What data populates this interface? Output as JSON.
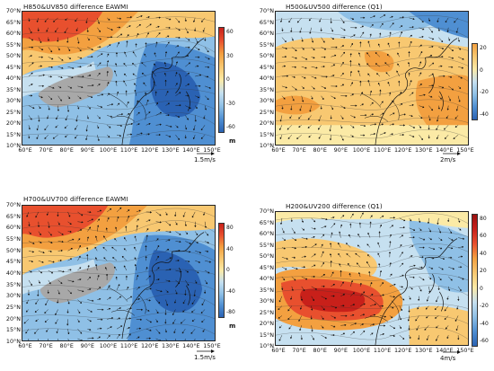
{
  "panels": [
    {
      "title": "H850&UV850  difference     EAWMI",
      "y_labels": [
        "70°N",
        "65°N",
        "60°N",
        "55°N",
        "50°N",
        "45°N",
        "40°N",
        "35°N",
        "30°N",
        "25°N",
        "20°N",
        "15°N",
        "10°N"
      ],
      "x_labels": [
        "60°E",
        "70°E",
        "80°E",
        "90°E",
        "100°E",
        "110°E",
        "120°E",
        "130°E",
        "140°E",
        "150°E"
      ],
      "colorbar": {
        "ticks": [
          "60",
          "30",
          "0",
          "-30",
          "-60"
        ],
        "unit": "m"
      },
      "ref_vector": "1.5m/s",
      "pattern": "tl"
    },
    {
      "title": "H500&UV500  difference  (Q1)",
      "y_labels": [
        "70°N",
        "65°N",
        "60°N",
        "55°N",
        "50°N",
        "45°N",
        "40°N",
        "35°N",
        "30°N",
        "25°N",
        "20°N",
        "15°N",
        "10°N"
      ],
      "x_labels": [
        "60°E",
        "70°E",
        "80°E",
        "90°E",
        "100°E",
        "110°E",
        "120°E",
        "130°E",
        "140°E",
        "150°E"
      ],
      "colorbar": {
        "ticks": [
          "20",
          "0",
          "-20",
          "-40"
        ],
        "unit": ""
      },
      "ref_vector": "2m/s",
      "pattern": "tr"
    },
    {
      "title": "H700&UV700   difference     EAWMI",
      "y_labels": [
        "70°N",
        "65°N",
        "60°N",
        "55°N",
        "50°N",
        "45°N",
        "40°N",
        "35°N",
        "30°N",
        "25°N",
        "20°N",
        "15°N",
        "10°N"
      ],
      "x_labels": [
        "60°E",
        "70°E",
        "80°E",
        "90°E",
        "100°E",
        "110°E",
        "120°E",
        "130°E",
        "140°E",
        "150°E"
      ],
      "colorbar": {
        "ticks": [
          "80",
          "40",
          "0",
          "-40",
          "-80"
        ],
        "unit": "m"
      },
      "ref_vector": "1.5m/s",
      "pattern": "bl"
    },
    {
      "title": "H200&UV200  difference  (Q1)",
      "y_labels": [
        "70°N",
        "65°N",
        "60°N",
        "55°N",
        "50°N",
        "45°N",
        "40°N",
        "35°N",
        "30°N",
        "25°N",
        "20°N",
        "15°N",
        "10°N"
      ],
      "x_labels": [
        "60°E",
        "70°E",
        "80°E",
        "90°E",
        "100°E",
        "110°E",
        "120°E",
        "130°E",
        "140°E",
        "150°E"
      ],
      "colorbar": {
        "ticks": [
          "80",
          "60",
          "40",
          "20",
          "0",
          "-20",
          "-40",
          "-60"
        ],
        "unit": ""
      },
      "ref_vector": "4m/s",
      "pattern": "br"
    }
  ],
  "colors": {
    "deep_red": "#c8201a",
    "red": "#e8502e",
    "orange": "#f3a040",
    "light_orange": "#f8c871",
    "pale_yellow": "#fbeaa6",
    "pale_blue": "#c6e0f0",
    "light_blue": "#8fc0e6",
    "blue": "#4f8fd2",
    "deep_blue": "#2a62b3",
    "terrain_gray": "#a8a8a8"
  }
}
